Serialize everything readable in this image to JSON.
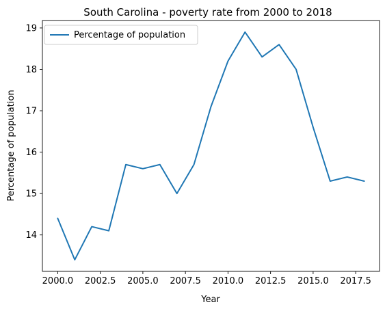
{
  "chart_data": {
    "type": "line",
    "title": "South Carolina - poverty rate from 2000 to 2018",
    "xlabel": "Year",
    "ylabel": "Percentage of population",
    "xlim": [
      1999.1,
      2018.9
    ],
    "ylim": [
      13.12,
      19.18
    ],
    "x_ticks": [
      2000.0,
      2002.5,
      2005.0,
      2007.5,
      2010.0,
      2012.5,
      2015.0,
      2017.5
    ],
    "x_tick_labels": [
      "2000.0",
      "2002.5",
      "2005.0",
      "2007.5",
      "2010.0",
      "2012.5",
      "2015.0",
      "2017.5"
    ],
    "y_ticks": [
      14,
      15,
      16,
      17,
      18,
      19
    ],
    "y_tick_labels": [
      "14",
      "15",
      "16",
      "17",
      "18",
      "19"
    ],
    "grid": false,
    "legend_position": "top-left",
    "series_color": "#1f77b4",
    "series": [
      {
        "name": "Percentage of population",
        "x": [
          2000,
          2001,
          2002,
          2003,
          2004,
          2005,
          2006,
          2007,
          2008,
          2009,
          2010,
          2011,
          2012,
          2013,
          2014,
          2015,
          2016,
          2017,
          2018
        ],
        "values": [
          14.4,
          13.4,
          14.2,
          14.1,
          15.7,
          15.6,
          15.7,
          15.0,
          15.7,
          17.1,
          18.2,
          18.9,
          18.3,
          18.6,
          18.0,
          16.6,
          15.3,
          15.4,
          15.3
        ]
      }
    ]
  }
}
